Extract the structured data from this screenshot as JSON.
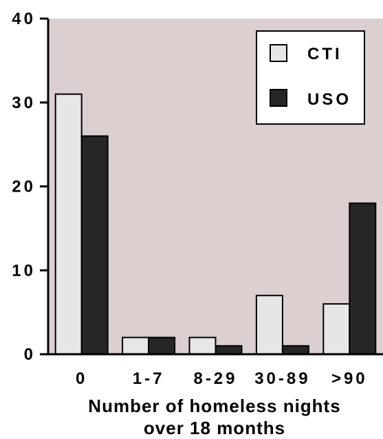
{
  "chart_data": {
    "type": "bar",
    "categories": [
      "0",
      "1-7",
      "8-29",
      "30-89",
      ">90"
    ],
    "series": [
      {
        "name": "CTI",
        "values": [
          31,
          2,
          2,
          7,
          6
        ],
        "color": "#e6e6e6"
      },
      {
        "name": "USO",
        "values": [
          26,
          2,
          1,
          1,
          18
        ],
        "color": "#262626"
      }
    ],
    "yticks": [
      "0",
      "10",
      "20",
      "30",
      "40"
    ],
    "ylim": [
      0,
      40
    ],
    "xlabel_lines": [
      "Number of homeless nights",
      "over 18 months"
    ],
    "ylabel": "",
    "title": "",
    "legend_position": "top-right",
    "grid": false,
    "plot_background": "#dccfcf"
  }
}
